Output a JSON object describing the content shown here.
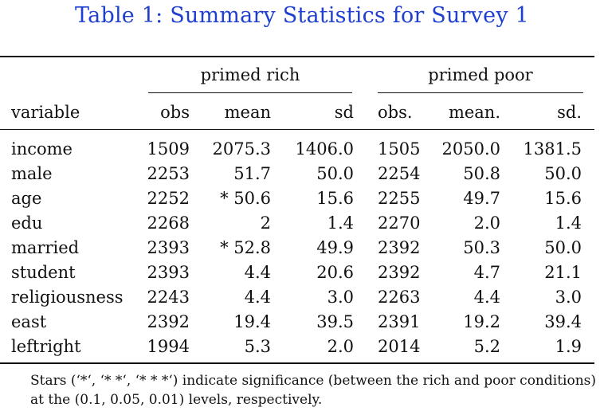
{
  "caption": "Table 1: Summary Statistics for Survey 1",
  "groups": {
    "rich": "primed rich",
    "poor": "primed poor"
  },
  "headers": {
    "variable": "variable",
    "obs": "obs",
    "mean": "mean",
    "sd": "sd",
    "obs2": "obs.",
    "mean2": "mean.",
    "sd2": "sd."
  },
  "rows": [
    {
      "variable": "income",
      "obs": "1509",
      "mean": "2075.3",
      "sd": "1406.0",
      "obs2": "1505",
      "mean2": "2050.0",
      "sd2": "1381.5"
    },
    {
      "variable": "male",
      "obs": "2253",
      "mean": "51.7",
      "sd": "50.0",
      "obs2": "2254",
      "mean2": "50.8",
      "sd2": "50.0"
    },
    {
      "variable": "age",
      "obs": "2252",
      "mean": "* 50.6",
      "sd": "15.6",
      "obs2": "2255",
      "mean2": "49.7",
      "sd2": "15.6"
    },
    {
      "variable": "edu",
      "obs": "2268",
      "mean": "2",
      "sd": "1.4",
      "obs2": "2270",
      "mean2": "2.0",
      "sd2": "1.4"
    },
    {
      "variable": "married",
      "obs": "2393",
      "mean": "* 52.8",
      "sd": "49.9",
      "obs2": "2392",
      "mean2": "50.3",
      "sd2": "50.0"
    },
    {
      "variable": "student",
      "obs": "2393",
      "mean": "4.4",
      "sd": "20.6",
      "obs2": "2392",
      "mean2": "4.7",
      "sd2": "21.1"
    },
    {
      "variable": "religiousness",
      "obs": "2243",
      "mean": "4.4",
      "sd": "3.0",
      "obs2": "2263",
      "mean2": "4.4",
      "sd2": "3.0"
    },
    {
      "variable": "east",
      "obs": "2392",
      "mean": "19.4",
      "sd": "39.5",
      "obs2": "2391",
      "mean2": "19.2",
      "sd2": "39.4"
    },
    {
      "variable": "leftright",
      "obs": "1994",
      "mean": "5.3",
      "sd": "2.0",
      "obs2": "2014",
      "mean2": "5.2",
      "sd2": "1.9"
    }
  ],
  "note": "Stars (‘*‘, ‘* *‘, ‘* * *‘) indicate significance (between the rich and poor conditions) at the (0.1, 0.05, 0.01) levels, respectively.",
  "colors": {
    "caption": "#1f3fcf",
    "text": "#111111"
  }
}
